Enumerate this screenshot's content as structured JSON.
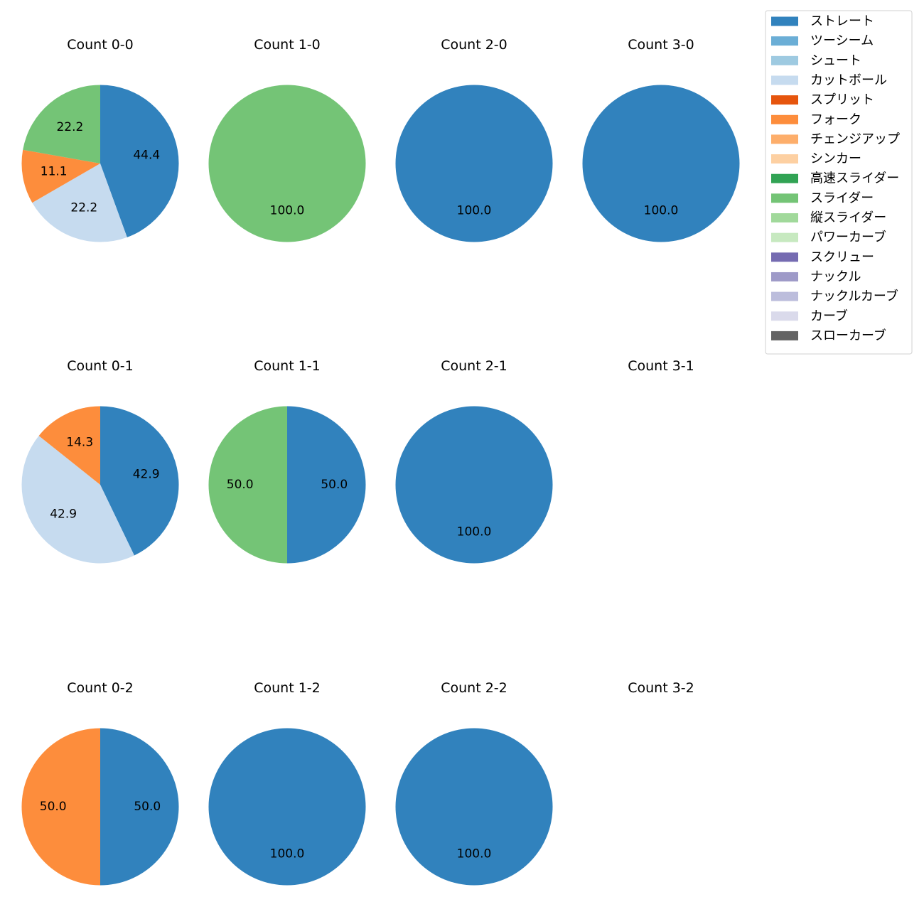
{
  "chart_data": {
    "type": "pie",
    "start_angle_deg": 90,
    "direction": "clockwise",
    "legend": {
      "placement": "top-right",
      "entries": [
        {
          "name": "ストレート",
          "color": "#3182bd"
        },
        {
          "name": "ツーシーム",
          "color": "#6baed6"
        },
        {
          "name": "シュート",
          "color": "#9ecae1"
        },
        {
          "name": "カットボール",
          "color": "#c6dbef"
        },
        {
          "name": "スプリット",
          "color": "#e6550d"
        },
        {
          "name": "フォーク",
          "color": "#fd8d3c"
        },
        {
          "name": "チェンジアップ",
          "color": "#fdae6b"
        },
        {
          "name": "シンカー",
          "color": "#fdd0a2"
        },
        {
          "name": "高速スライダー",
          "color": "#31a354"
        },
        {
          "name": "スライダー",
          "color": "#74c476"
        },
        {
          "name": "縦スライダー",
          "color": "#a1d99b"
        },
        {
          "name": "パワーカーブ",
          "color": "#c7e9c0"
        },
        {
          "name": "スクリュー",
          "color": "#756bb1"
        },
        {
          "name": "ナックル",
          "color": "#9e9ac8"
        },
        {
          "name": "ナックルカーブ",
          "color": "#bcbddc"
        },
        {
          "name": "カーブ",
          "color": "#dadaeb"
        },
        {
          "name": "スローカーブ",
          "color": "#636363"
        }
      ]
    },
    "panels": [
      {
        "title": "Count 0-0",
        "slices": [
          {
            "pitch": "ストレート",
            "value": 44.4,
            "label": "44.4"
          },
          {
            "pitch": "カットボール",
            "value": 22.2,
            "label": "22.2"
          },
          {
            "pitch": "フォーク",
            "value": 11.1,
            "label": "11.1"
          },
          {
            "pitch": "スライダー",
            "value": 22.2,
            "label": "22.2"
          }
        ]
      },
      {
        "title": "Count 1-0",
        "slices": [
          {
            "pitch": "スライダー",
            "value": 100.0,
            "label": "100.0"
          }
        ]
      },
      {
        "title": "Count 2-0",
        "slices": [
          {
            "pitch": "ストレート",
            "value": 100.0,
            "label": "100.0"
          }
        ]
      },
      {
        "title": "Count 3-0",
        "slices": [
          {
            "pitch": "ストレート",
            "value": 100.0,
            "label": "100.0"
          }
        ]
      },
      {
        "title": "Count 0-1",
        "slices": [
          {
            "pitch": "ストレート",
            "value": 42.9,
            "label": "42.9"
          },
          {
            "pitch": "カットボール",
            "value": 42.9,
            "label": "42.9"
          },
          {
            "pitch": "フォーク",
            "value": 14.3,
            "label": "14.3"
          }
        ]
      },
      {
        "title": "Count 1-1",
        "slices": [
          {
            "pitch": "ストレート",
            "value": 50.0,
            "label": "50.0"
          },
          {
            "pitch": "スライダー",
            "value": 50.0,
            "label": "50.0"
          }
        ]
      },
      {
        "title": "Count 2-1",
        "slices": [
          {
            "pitch": "ストレート",
            "value": 100.0,
            "label": "100.0"
          }
        ]
      },
      {
        "title": "Count 3-1",
        "slices": []
      },
      {
        "title": "Count 0-2",
        "slices": [
          {
            "pitch": "ストレート",
            "value": 50.0,
            "label": "50.0"
          },
          {
            "pitch": "フォーク",
            "value": 50.0,
            "label": "50.0"
          }
        ]
      },
      {
        "title": "Count 1-2",
        "slices": [
          {
            "pitch": "ストレート",
            "value": 100.0,
            "label": "100.0"
          }
        ]
      },
      {
        "title": "Count 2-2",
        "slices": [
          {
            "pitch": "ストレート",
            "value": 100.0,
            "label": "100.0"
          }
        ]
      },
      {
        "title": "Count 3-2",
        "slices": []
      }
    ]
  }
}
